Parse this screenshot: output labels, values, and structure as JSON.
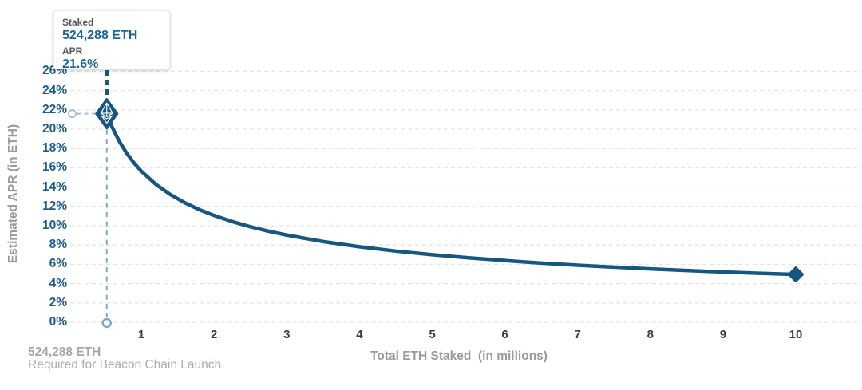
{
  "tooltip": {
    "staked_label": "Staked",
    "staked_value": "524,288 ETH",
    "apr_label": "APR",
    "apr_value": "21.6%"
  },
  "footnote": {
    "value": "524,288 ETH",
    "caption": "Required for Beacon Chain Launch"
  },
  "chart_data": {
    "type": "line",
    "title": "",
    "xlabel": "Total ETH Staked  (in millions)",
    "ylabel": "Estimated APR (in ETH)",
    "x_ticks": [
      1,
      2,
      3,
      4,
      5,
      6,
      7,
      8,
      9,
      10
    ],
    "y_ticks": [
      "26%",
      "24%",
      "22%",
      "20%",
      "18%",
      "16%",
      "14%",
      "12%",
      "10%",
      "8%",
      "6%",
      "4%",
      "2%",
      "0%"
    ],
    "xlim": [
      0,
      10.9
    ],
    "ylim": [
      0,
      26
    ],
    "grid": "horizontal-dashed",
    "legend": "none",
    "series": [
      {
        "name": "Estimated APR (in ETH)",
        "x": [
          0.524288,
          0.6,
          0.7,
          0.8,
          0.9,
          1.0,
          1.2,
          1.4,
          1.6,
          1.8,
          2.0,
          2.25,
          2.5,
          2.75,
          3.0,
          3.5,
          4.0,
          4.5,
          5.0,
          5.5,
          6.0,
          6.5,
          7.0,
          7.5,
          8.0,
          8.5,
          9.0,
          9.5,
          10.0
        ],
        "y": [
          21.6,
          20.19,
          18.69,
          17.49,
          16.49,
          15.64,
          14.28,
          13.22,
          12.37,
          11.66,
          11.06,
          10.43,
          9.89,
          9.43,
          9.03,
          8.36,
          7.82,
          7.37,
          6.99,
          6.67,
          6.39,
          6.13,
          5.91,
          5.71,
          5.53,
          5.36,
          5.21,
          5.07,
          4.95
        ]
      }
    ],
    "highlight_point": {
      "x": 0.524288,
      "y": 21.6,
      "staked": "524,288 ETH",
      "apr": "21.6%"
    },
    "end_point": {
      "x": 10,
      "y": 4.95
    },
    "colors": {
      "line": "#15577f",
      "grid": "#e4e4e4",
      "reference": "#7fa6c4",
      "reference_light": "#a9bfd0",
      "y_tick": "#1d5c8a",
      "x_tick": "#3d3d3d",
      "axis_title": "#9a9a9a",
      "tooltip_value": "#1a659c",
      "tooltip_label": "#575757",
      "footnote": "#a6a6a6"
    }
  }
}
